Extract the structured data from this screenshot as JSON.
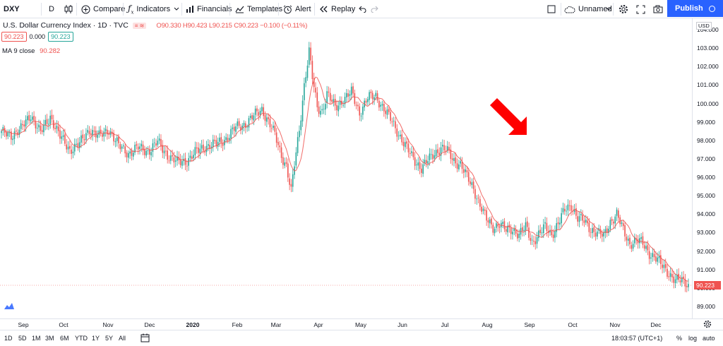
{
  "toolbar": {
    "symbol": "DXY",
    "interval": "D",
    "compare": "Compare",
    "indicators": "Indicators",
    "financials": "Financials",
    "templates": "Templates",
    "alert": "Alert",
    "replay": "Replay",
    "layout_name": "Unnamed",
    "publish": "Publish"
  },
  "legend": {
    "title": "U.S. Dollar Currency Index · 1D · TVC",
    "ohlc": "O90.330  H90.423  L90.215  C90.223  −0.100 (−0.11%)",
    "bid": "90.223",
    "spread": "0.000",
    "ask": "90.223",
    "ma_label": "MA 9 close",
    "ma_value": "90.282"
  },
  "price_axis": {
    "currency": "USD",
    "last_price": "90.223",
    "labels": [
      "104.000",
      "103.000",
      "102.000",
      "101.000",
      "100.000",
      "99.000",
      "98.000",
      "97.000",
      "96.000",
      "95.000",
      "94.000",
      "93.000",
      "92.000",
      "91.000",
      "90.000",
      "89.000"
    ]
  },
  "time_axis": {
    "labels": [
      "Sep",
      "Oct",
      "Nov",
      "Dec",
      "2020",
      "Feb",
      "Mar",
      "Apr",
      "May",
      "Jun",
      "Jul",
      "Aug",
      "Sep",
      "Oct",
      "Nov",
      "Dec"
    ]
  },
  "bottom_bar": {
    "ranges": [
      "1D",
      "5D",
      "1M",
      "3M",
      "6M",
      "YTD",
      "1Y",
      "5Y",
      "All"
    ],
    "time": "18:03:57 (UTC+1)",
    "percent": "%",
    "log": "log",
    "auto": "auto"
  },
  "colors": {
    "up": "#26a69a",
    "down": "#ef5350",
    "ma": "#ef5350",
    "arrow": "#ff0000",
    "accent": "#2962ff"
  },
  "chart_data": {
    "type": "candlestick",
    "symbol": "DXY",
    "interval": "1D",
    "ylim": [
      88.6,
      104.5
    ],
    "ma_period": 9,
    "anchors": [
      [
        0,
        98.4
      ],
      [
        6,
        98.3
      ],
      [
        12,
        98.6
      ],
      [
        18,
        99.4
      ],
      [
        24,
        98.4
      ],
      [
        30,
        99.3
      ],
      [
        36,
        98.2
      ],
      [
        42,
        97.5
      ],
      [
        48,
        97.8
      ],
      [
        54,
        98.6
      ],
      [
        60,
        98.2
      ],
      [
        66,
        98.6
      ],
      [
        72,
        97.7
      ],
      [
        78,
        97.3
      ],
      [
        84,
        97.6
      ],
      [
        90,
        97.4
      ],
      [
        96,
        97.9
      ],
      [
        102,
        97.2
      ],
      [
        108,
        96.8
      ],
      [
        114,
        96.9
      ],
      [
        120,
        97.4
      ],
      [
        126,
        97.7
      ],
      [
        132,
        97.8
      ],
      [
        138,
        98.1
      ],
      [
        144,
        98.7
      ],
      [
        150,
        98.9
      ],
      [
        156,
        99.4
      ],
      [
        160,
        99.7
      ],
      [
        164,
        99.0
      ],
      [
        168,
        98.3
      ],
      [
        172,
        97.2
      ],
      [
        175,
        96.6
      ],
      [
        178,
        95.2
      ],
      [
        180,
        96.7
      ],
      [
        183,
        98.6
      ],
      [
        186,
        101.0
      ],
      [
        189,
        102.8
      ],
      [
        191,
        101.4
      ],
      [
        194,
        99.8
      ],
      [
        197,
        99.6
      ],
      [
        200,
        100.5
      ],
      [
        205,
        99.8
      ],
      [
        210,
        100.2
      ],
      [
        215,
        100.6
      ],
      [
        220,
        99.5
      ],
      [
        225,
        100.3
      ],
      [
        230,
        100.4
      ],
      [
        235,
        99.7
      ],
      [
        240,
        99.0
      ],
      [
        245,
        98.2
      ],
      [
        250,
        97.4
      ],
      [
        254,
        96.9
      ],
      [
        258,
        96.5
      ],
      [
        262,
        96.9
      ],
      [
        266,
        97.3
      ],
      [
        270,
        97.6
      ],
      [
        274,
        97.4
      ],
      [
        278,
        96.9
      ],
      [
        282,
        96.7
      ],
      [
        286,
        96.0
      ],
      [
        290,
        95.4
      ],
      [
        294,
        94.5
      ],
      [
        298,
        93.7
      ],
      [
        302,
        93.3
      ],
      [
        306,
        93.5
      ],
      [
        310,
        93.1
      ],
      [
        314,
        93.2
      ],
      [
        318,
        92.9
      ],
      [
        322,
        93.3
      ],
      [
        326,
        92.5
      ],
      [
        330,
        92.9
      ],
      [
        334,
        93.3
      ],
      [
        338,
        92.9
      ],
      [
        342,
        93.5
      ],
      [
        346,
        94.2
      ],
      [
        350,
        94.5
      ],
      [
        354,
        93.8
      ],
      [
        358,
        93.6
      ],
      [
        362,
        93.2
      ],
      [
        366,
        93.0
      ],
      [
        370,
        92.8
      ],
      [
        374,
        93.6
      ],
      [
        378,
        94.0
      ],
      [
        382,
        93.1
      ],
      [
        386,
        92.4
      ],
      [
        390,
        92.6
      ],
      [
        394,
        92.4
      ],
      [
        398,
        91.9
      ],
      [
        402,
        91.6
      ],
      [
        406,
        91.2
      ],
      [
        410,
        90.8
      ],
      [
        414,
        90.4
      ],
      [
        418,
        90.4
      ],
      [
        422,
        90.22
      ]
    ]
  }
}
